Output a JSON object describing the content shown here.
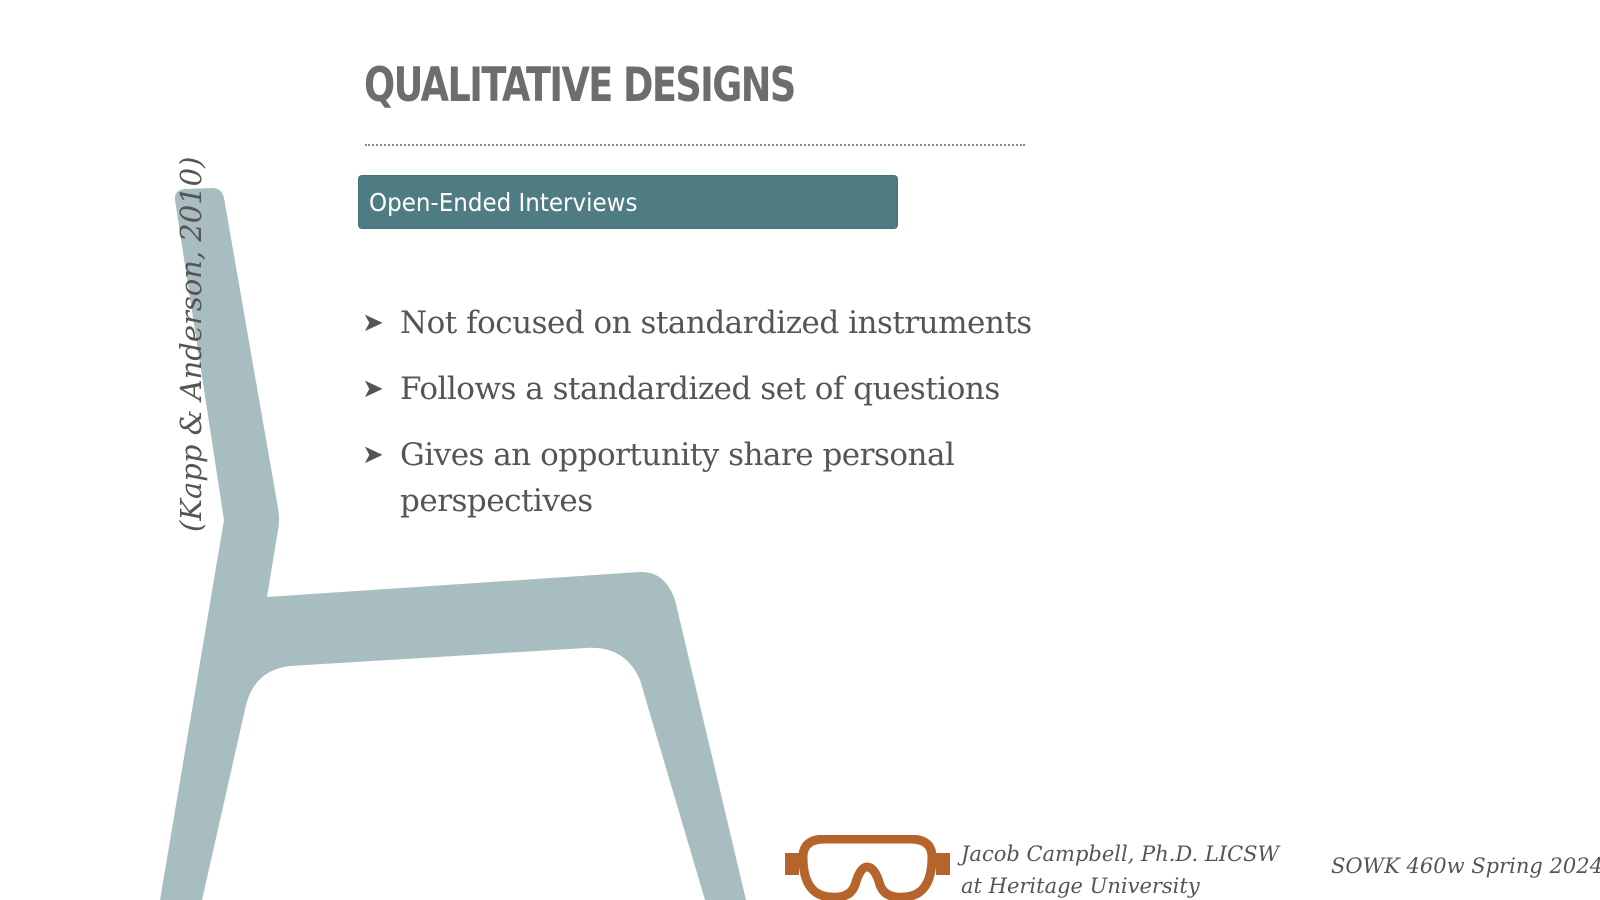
{
  "slide": {
    "title": "QUALITATIVE DESIGNS",
    "subtitle": "Open-Ended Interviews",
    "bullets": [
      "Not focused on standardized instruments",
      "Follows a standardized set of questions",
      "Gives an opportunity share personal perspectives"
    ],
    "bullet_marker": "➤",
    "citation": "(Kapp & Anderson, 2010)"
  },
  "footer": {
    "author_line1": "Jacob Campbell, Ph.D. LICSW",
    "author_line2": "at Heritage University",
    "course": "SOWK 460w Spring 2024"
  },
  "colors": {
    "title": "#6d6d6d",
    "subtitle_bg": "#4f7c83",
    "chair": "#a7bdbf",
    "goggles": "#b5652b",
    "body_text": "#555555"
  },
  "icons": {
    "chair": "chair-illustration",
    "goggles": "goggles-icon"
  }
}
